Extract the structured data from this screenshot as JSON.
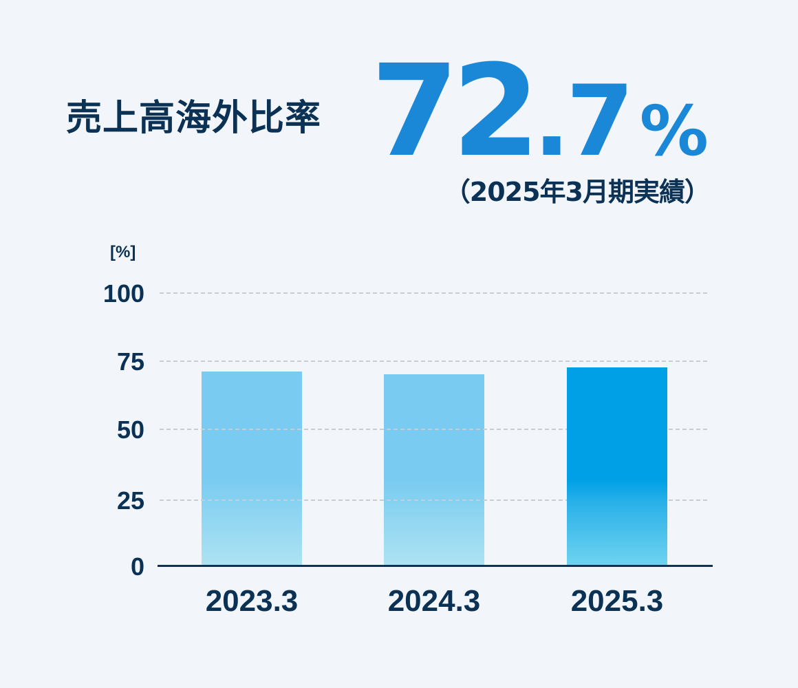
{
  "header": {
    "title": "売上高海外比率",
    "headline_integer": "72",
    "headline_decimal": ".7",
    "headline_unit": "%",
    "subnote": "（2025年3月期実績）"
  },
  "colors": {
    "background": "#F2F6FA",
    "text": "#0B3154",
    "headline": "#1A87D7",
    "bar_past_top": "#79CBF1",
    "bar_past_bottom": "#ADE3F2",
    "bar_current_top": "#00A0E6",
    "bar_current_bottom": "#6FD3F0",
    "grid": "#C8CDD2"
  },
  "chart_data": {
    "type": "bar",
    "title": "売上高海外比率",
    "xlabel": "",
    "ylabel": "[%]",
    "unit_label": "[%]",
    "categories": [
      "2023.3",
      "2024.3",
      "2025.3"
    ],
    "values": [
      71.2,
      70.2,
      72.7
    ],
    "highlight_index": 2,
    "ylim": [
      0,
      100
    ],
    "yticks": [
      "100",
      "75",
      "50",
      "25",
      "0"
    ],
    "ytick_values": [
      100,
      75,
      50,
      25,
      0
    ],
    "grid": true,
    "grid_style": "dashed",
    "legend": null
  }
}
